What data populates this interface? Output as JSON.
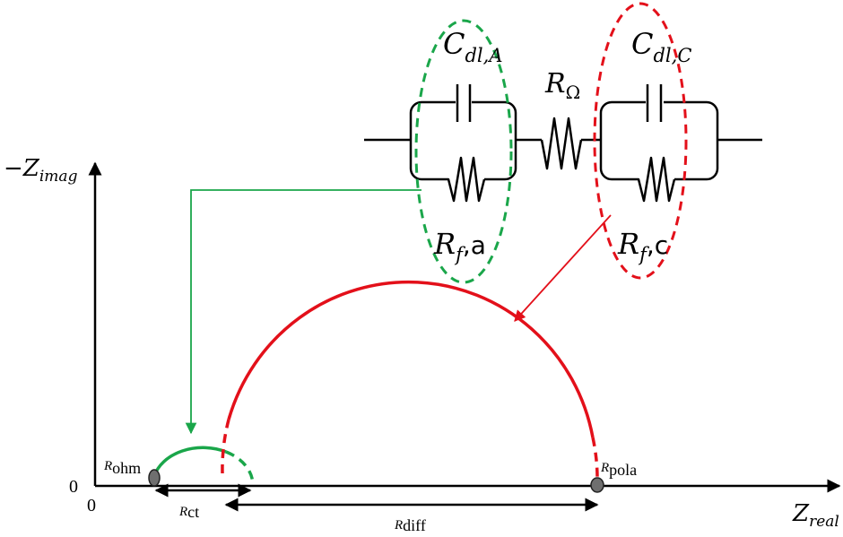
{
  "axes": {
    "y_label_prefix": "−",
    "y_label_main": "Z",
    "y_label_sub": "imag",
    "x_label_main": "Z",
    "x_label_sub": "real",
    "origin_x": "0",
    "origin_y": "0"
  },
  "labels": {
    "r_ohm_main": "R",
    "r_ohm_sub": "ohm",
    "r_pola_main": "R",
    "r_pola_sub": "pola",
    "r_ct_main": "R",
    "r_ct_sub": "ct",
    "r_diff_main": "R",
    "r_diff_sub": "diff"
  },
  "circuit": {
    "c_anode_main": "C",
    "c_anode_sub": "dl,A",
    "c_cathode_main": "C",
    "c_cathode_sub": "dl,C",
    "r_ohmic_main": "R",
    "r_ohmic_sub": "Ω",
    "rf_anode_main": "R",
    "rf_anode_sub": "f",
    "rf_anode_suffix": ",a",
    "rf_cathode_main": "R",
    "rf_cathode_sub": "f",
    "rf_cathode_suffix": ",c"
  },
  "colors": {
    "anode": "#1aa64a",
    "cathode": "#e3101a",
    "axis": "#000000",
    "point": "#6f6f6f"
  }
}
